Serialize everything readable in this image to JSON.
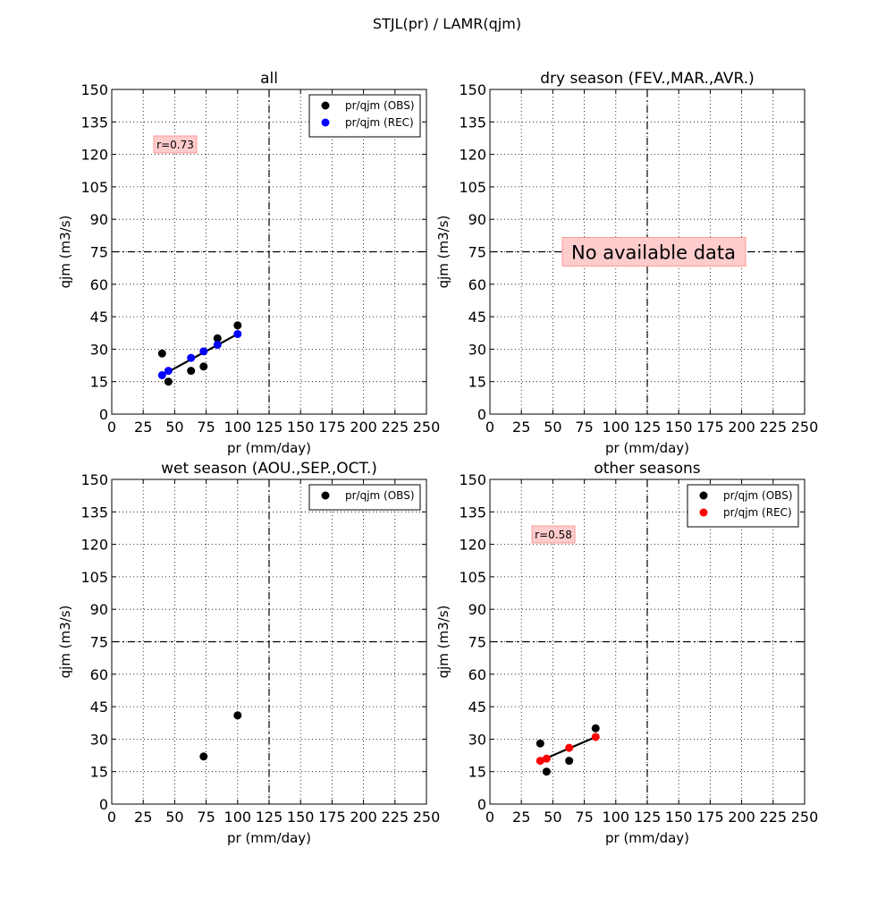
{
  "suptitle": "STJL(pr) / LAMR(qjm)",
  "colors": {
    "obs": "#000000",
    "rec_all": "#0000ff",
    "rec_other": "#ff0000",
    "annot_bg": "#ffcccc",
    "annot_edge": "#ff9999"
  },
  "chart_data": [
    {
      "type": "scatter",
      "title": "all",
      "xlabel": "pr (mm/day)",
      "ylabel": "qjm (m3/s)",
      "xlim": [
        0,
        250
      ],
      "ylim": [
        0,
        150
      ],
      "xticks": [
        0,
        25,
        50,
        75,
        100,
        125,
        150,
        175,
        200,
        225,
        250
      ],
      "yticks": [
        0,
        15,
        30,
        45,
        60,
        75,
        90,
        105,
        120,
        135,
        150
      ],
      "grid": true,
      "ref_lines": {
        "x": 125,
        "y": 75
      },
      "legend_position": "top-right",
      "annotation": "r=0.73",
      "series": [
        {
          "name": "pr/qjm (OBS)",
          "color": "#000000",
          "points": [
            [
              40,
              28
            ],
            [
              45,
              15
            ],
            [
              63,
              20
            ],
            [
              73,
              22
            ],
            [
              84,
              35
            ],
            [
              100,
              41
            ]
          ]
        },
        {
          "name": "pr/qjm (REC)",
          "color": "#0000ff",
          "points": [
            [
              40,
              18
            ],
            [
              45,
              20
            ],
            [
              63,
              26
            ],
            [
              73,
              29
            ],
            [
              84,
              32
            ],
            [
              100,
              37
            ]
          ]
        }
      ],
      "fit_line": [
        [
          40,
          18
        ],
        [
          100,
          37
        ]
      ]
    },
    {
      "type": "scatter",
      "title": "dry season (FEV.,MAR.,AVR.)",
      "xlabel": "pr (mm/day)",
      "ylabel": "qjm (m3/s)",
      "xlim": [
        0,
        250
      ],
      "ylim": [
        0,
        150
      ],
      "xticks": [
        0,
        25,
        50,
        75,
        100,
        125,
        150,
        175,
        200,
        225,
        250
      ],
      "yticks": [
        0,
        15,
        30,
        45,
        60,
        75,
        90,
        105,
        120,
        135,
        150
      ],
      "grid": true,
      "ref_lines": {
        "x": 125,
        "y": 75
      },
      "message": "No available data",
      "series": []
    },
    {
      "type": "scatter",
      "title": "wet season (AOU.,SEP.,OCT.)",
      "xlabel": "pr (mm/day)",
      "ylabel": "qjm (m3/s)",
      "xlim": [
        0,
        250
      ],
      "ylim": [
        0,
        150
      ],
      "xticks": [
        0,
        25,
        50,
        75,
        100,
        125,
        150,
        175,
        200,
        225,
        250
      ],
      "yticks": [
        0,
        15,
        30,
        45,
        60,
        75,
        90,
        105,
        120,
        135,
        150
      ],
      "grid": true,
      "ref_lines": {
        "x": 125,
        "y": 75
      },
      "legend_position": "top-right",
      "series": [
        {
          "name": "pr/qjm (OBS)",
          "color": "#000000",
          "points": [
            [
              73,
              22
            ],
            [
              100,
              41
            ]
          ]
        }
      ]
    },
    {
      "type": "scatter",
      "title": "other seasons",
      "xlabel": "pr (mm/day)",
      "ylabel": "qjm (m3/s)",
      "xlim": [
        0,
        250
      ],
      "ylim": [
        0,
        150
      ],
      "xticks": [
        0,
        25,
        50,
        75,
        100,
        125,
        150,
        175,
        200,
        225,
        250
      ],
      "yticks": [
        0,
        15,
        30,
        45,
        60,
        75,
        90,
        105,
        120,
        135,
        150
      ],
      "grid": true,
      "ref_lines": {
        "x": 125,
        "y": 75
      },
      "legend_position": "top-right",
      "annotation": "r=0.58",
      "series": [
        {
          "name": "pr/qjm (OBS)",
          "color": "#000000",
          "points": [
            [
              40,
              28
            ],
            [
              45,
              15
            ],
            [
              63,
              20
            ],
            [
              84,
              35
            ]
          ]
        },
        {
          "name": "pr/qjm (REC)",
          "color": "#ff0000",
          "points": [
            [
              40,
              20
            ],
            [
              45,
              21
            ],
            [
              63,
              26
            ],
            [
              84,
              31
            ]
          ]
        }
      ],
      "fit_line": [
        [
          40,
          20
        ],
        [
          84,
          31
        ]
      ]
    }
  ]
}
